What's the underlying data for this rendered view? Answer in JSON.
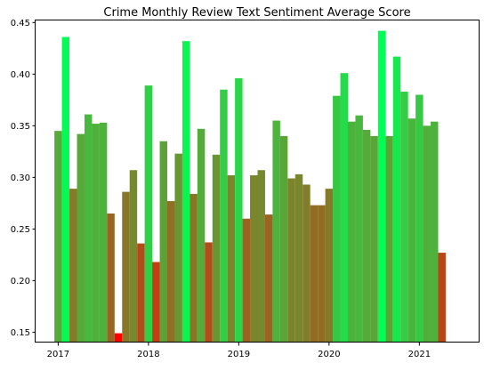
{
  "chart_data": {
    "type": "bar",
    "title": "Crime Monthly Review Text Sentiment Average Score",
    "xlabel": "",
    "ylabel": "",
    "x_start": "2017-01",
    "x_tick_labels": [
      "2017",
      "2018",
      "2019",
      "2020",
      "2021"
    ],
    "xlim": [
      "2016-10",
      "2021-09"
    ],
    "y_tick_labels": [
      "0.15",
      "0.20",
      "0.25",
      "0.30",
      "0.35",
      "0.40",
      "0.45"
    ],
    "ylim": [
      0.14,
      0.452
    ],
    "grid": false,
    "legend": "none",
    "color_low": "#ff0000",
    "color_high": "#00ff55",
    "color_scale_range": [
      0.149,
      0.442
    ],
    "values": [
      0.345,
      0.436,
      0.289,
      0.342,
      0.361,
      0.352,
      0.353,
      0.265,
      0.149,
      0.286,
      0.307,
      0.236,
      0.389,
      0.218,
      0.335,
      0.277,
      0.323,
      0.432,
      0.284,
      0.347,
      0.237,
      0.322,
      0.385,
      0.302,
      0.396,
      0.26,
      0.302,
      0.307,
      0.264,
      0.355,
      0.34,
      0.299,
      0.303,
      0.293,
      0.273,
      0.273,
      0.289,
      0.379,
      0.401,
      0.354,
      0.36,
      0.346,
      0.34,
      0.442,
      0.34,
      0.417,
      0.383,
      0.357,
      0.38,
      0.35,
      0.354,
      0.227
    ]
  }
}
